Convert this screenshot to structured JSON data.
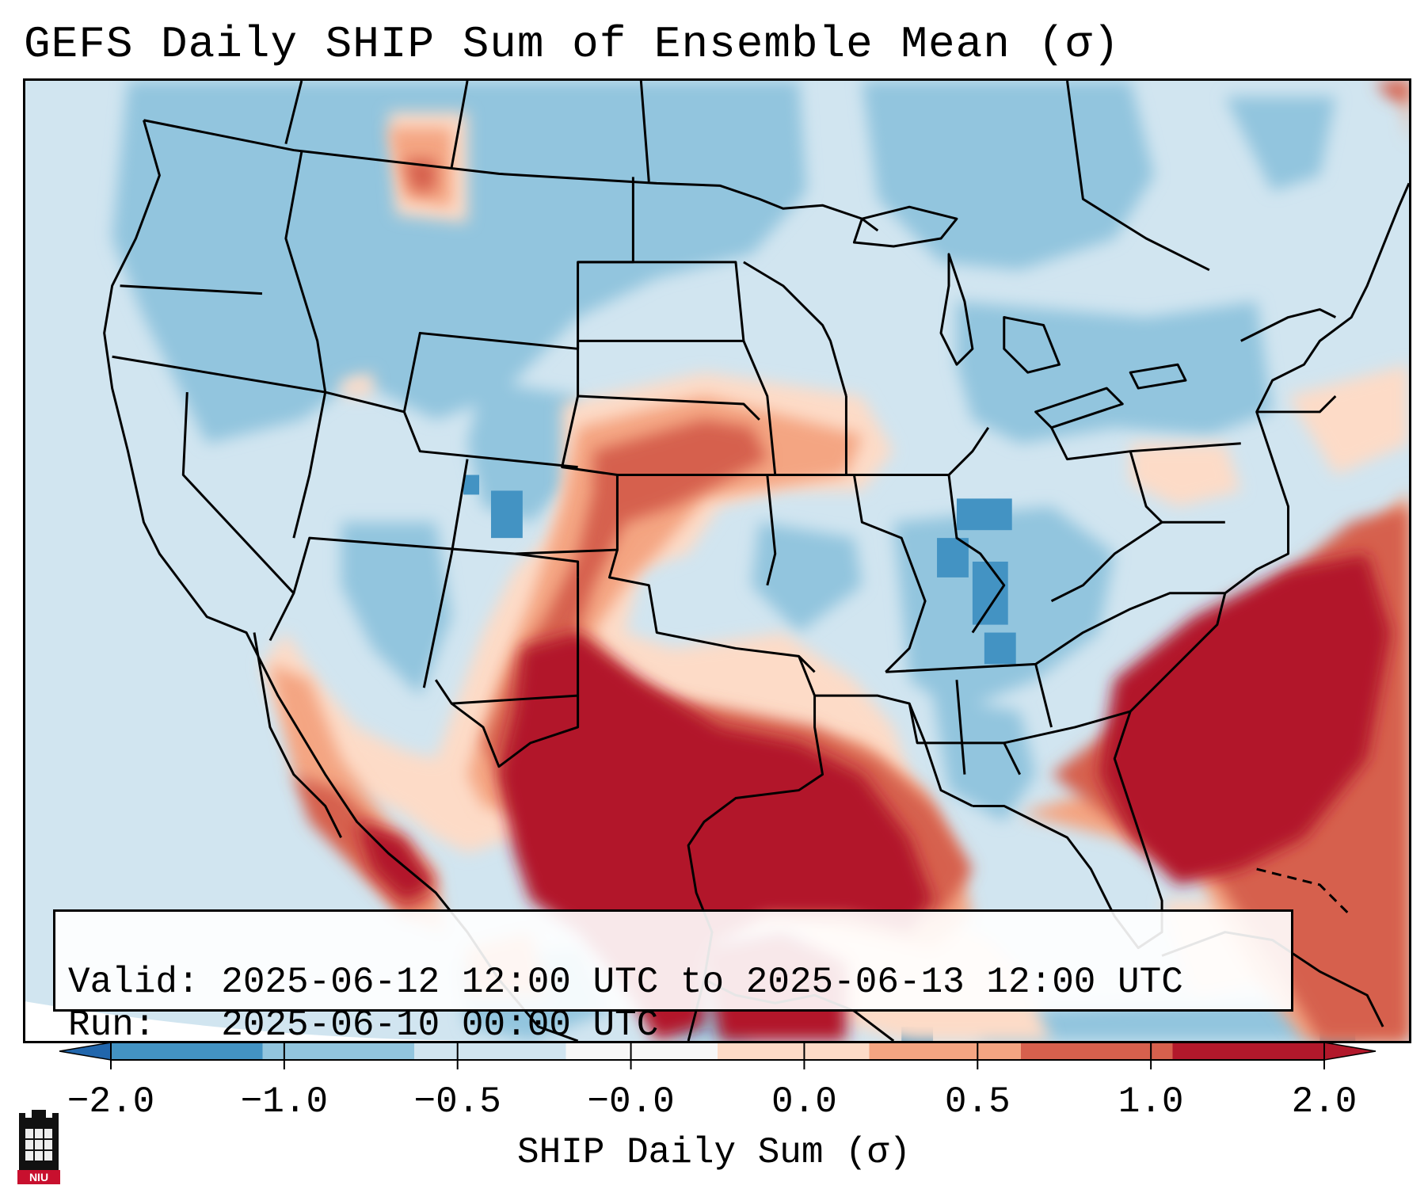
{
  "title": "GEFS Daily SHIP Sum of Ensemble Mean (σ)",
  "info": {
    "valid_line": "Valid: 2025-06-12 12:00 UTC to 2025-06-13 12:00 UTC",
    "run_line": "Run:   2025-06-10 00:00 UTC"
  },
  "colorbar": {
    "label": "SHIP Daily Sum (σ)",
    "ticks": [
      "−2.0",
      "−1.0",
      "−0.5",
      "−0.0",
      "0.0",
      "0.5",
      "1.0",
      "2.0"
    ],
    "colors": [
      "#4393c3",
      "#92c5de",
      "#d1e5f0",
      "#f7f7f7",
      "#fddbc7",
      "#f4a582",
      "#d6604d",
      "#b2182b"
    ],
    "under_color": "#2166ac",
    "over_color": "#b2182b"
  },
  "logo": {
    "text": "NIU",
    "name": "niu-logo-icon"
  }
}
